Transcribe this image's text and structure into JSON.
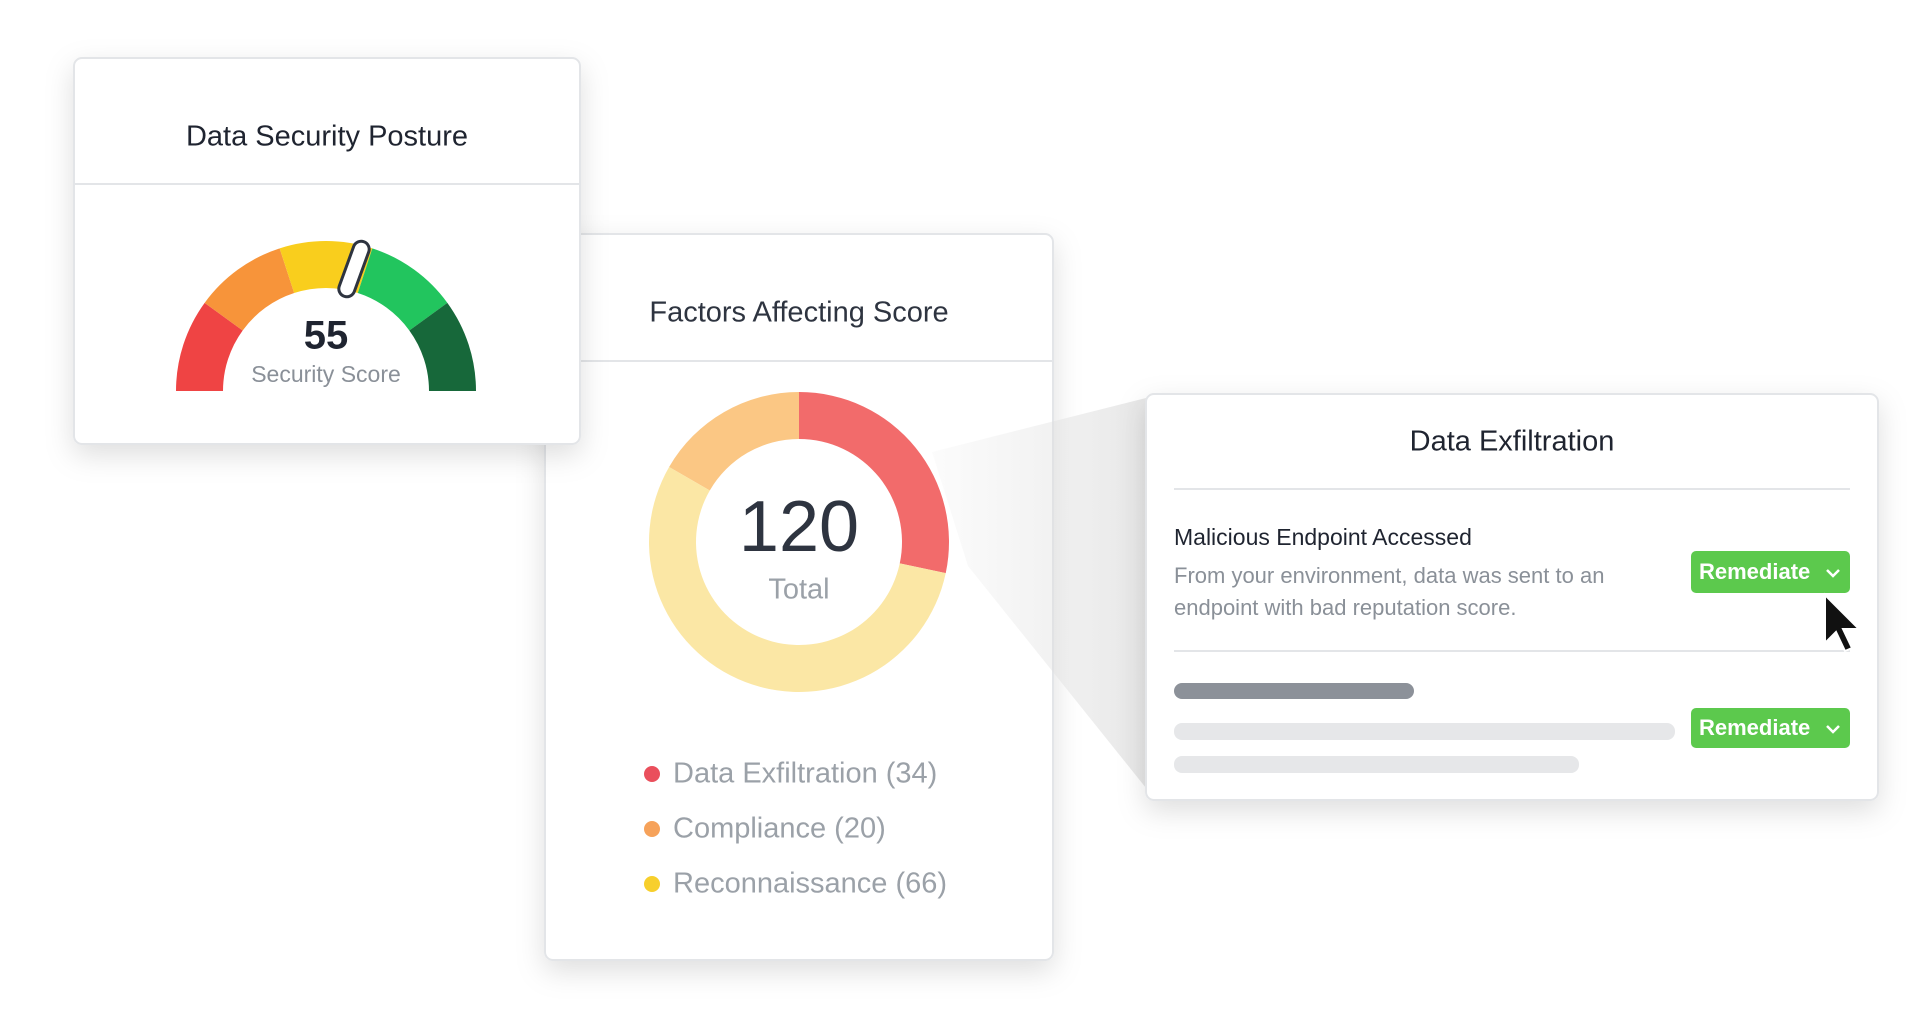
{
  "posture_card": {
    "title": "Data Security Posture",
    "score": "55",
    "score_label": "Security Score"
  },
  "chart_data": {
    "type": "pie",
    "title": "Factors Affecting Score",
    "center_value": "120",
    "center_label": "Total",
    "series": [
      {
        "name": "Data Exfiltration (34)",
        "color": "#f26b6b",
        "values": [
          34
        ]
      },
      {
        "name": "Compliance (20)",
        "color": "#fbc784",
        "values": [
          20
        ]
      },
      {
        "name": "Reconnaissance (66)",
        "color": "#fbe7a5",
        "values": [
          66
        ]
      }
    ],
    "legend_colors": [
      "#ea4f5c",
      "#f6a25a",
      "#f7cf2c"
    ]
  },
  "detail_card": {
    "title": "Data Exfiltration",
    "items": [
      {
        "title": "Malicious Endpoint Accessed",
        "description": [
          "From your environment, data was sent to an",
          "endpoint with bad reputation score."
        ],
        "button": "Remediate"
      },
      {
        "button": "Remediate"
      }
    ]
  }
}
